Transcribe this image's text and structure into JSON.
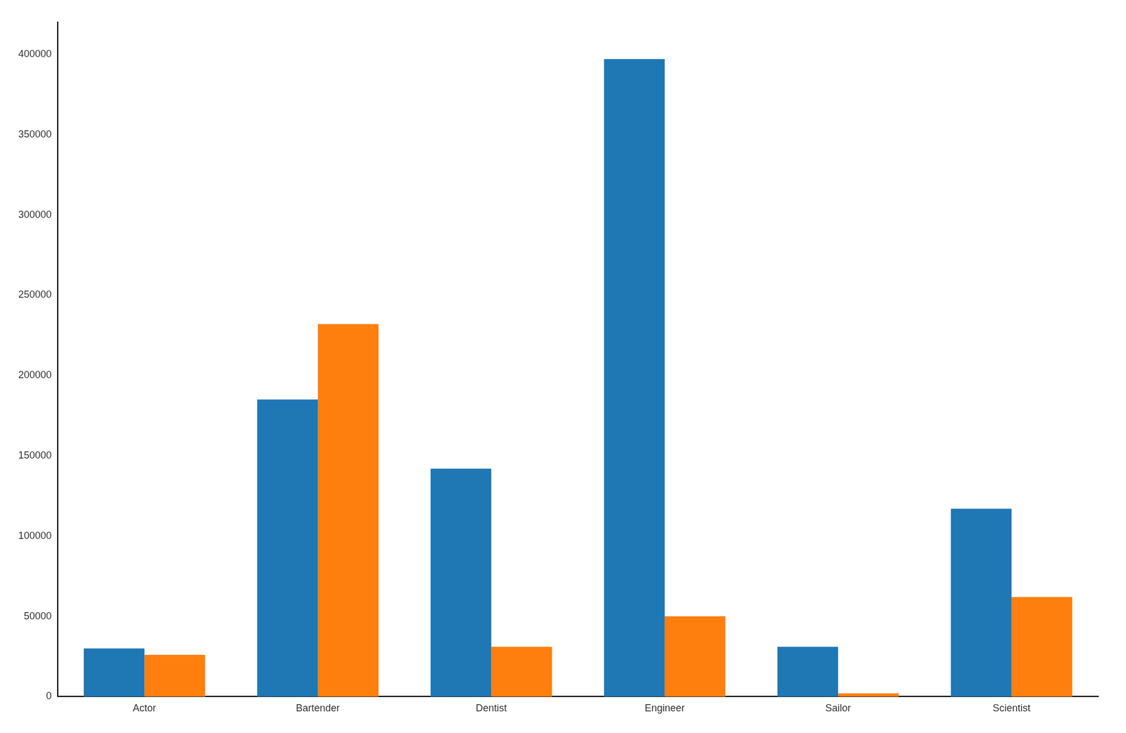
{
  "chart_data": {
    "type": "bar",
    "categories": [
      "Actor",
      "Bartender",
      "Dentist",
      "Engineer",
      "Sailor",
      "Scientist"
    ],
    "series": [
      {
        "color": "#1f77b4",
        "values": [
          30000,
          185000,
          142000,
          397000,
          31000,
          117000
        ]
      },
      {
        "color": "#ff7f0e",
        "values": [
          26000,
          232000,
          31000,
          50000,
          2000,
          62000
        ]
      }
    ],
    "ylim": [
      0,
      420000
    ],
    "yticks": [
      0,
      50000,
      100000,
      150000,
      200000,
      250000,
      300000,
      350000,
      400000
    ],
    "grid": false
  }
}
